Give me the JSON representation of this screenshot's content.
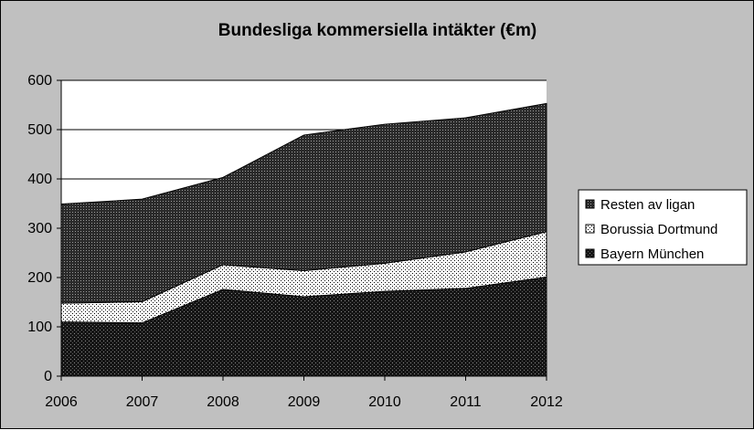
{
  "chart_data": {
    "type": "area",
    "stacked": true,
    "title": "Bundesliga kommersiella intäkter (€m)",
    "xlabel": "",
    "ylabel": "",
    "x": [
      "2006",
      "2007",
      "2008",
      "2009",
      "2010",
      "2011",
      "2012"
    ],
    "ylim": [
      0,
      600
    ],
    "yticks": [
      "0",
      "100",
      "200",
      "300",
      "400",
      "500",
      "600"
    ],
    "grid": true,
    "legend_position": "right",
    "series": [
      {
        "name": "Bayern München",
        "values": [
          110,
          108,
          176,
          161,
          172,
          178,
          201
        ],
        "pattern": "dark-dotted"
      },
      {
        "name": "Borussia Dortmund",
        "values": [
          38,
          43,
          50,
          53,
          57,
          74,
          92
        ],
        "pattern": "light-dotted"
      },
      {
        "name": "Resten av ligan",
        "values": [
          201,
          208,
          177,
          275,
          282,
          272,
          260
        ],
        "pattern": "dark-checkered"
      }
    ],
    "legend_order": [
      "Resten av ligan",
      "Borussia Dortmund",
      "Bayern München"
    ]
  },
  "colors": {
    "background": "#c0c0c0",
    "plot_area": "#ffffff",
    "dark_fill": "#1a1a1a",
    "light_fill": "#ffffff",
    "grid": "#000000"
  }
}
